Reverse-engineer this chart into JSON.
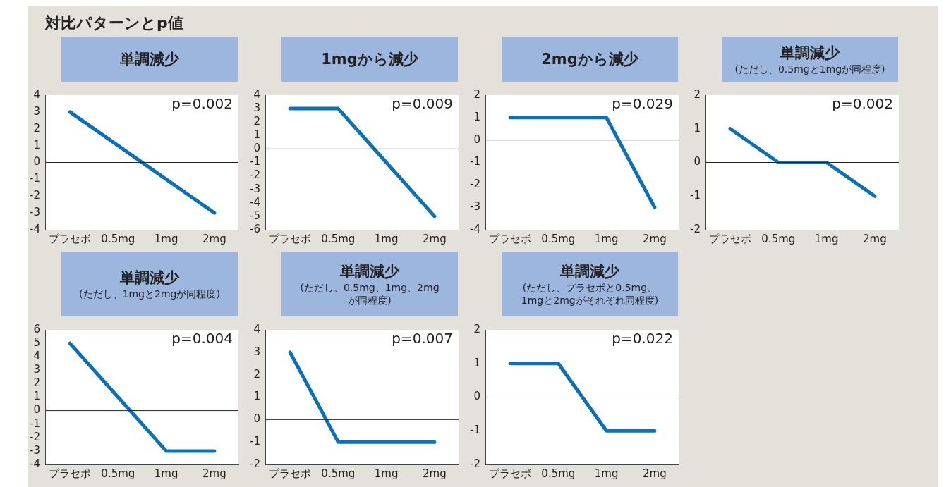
{
  "chart_data": [
    {
      "type": "other",
      "title": "対比パターンとp値"
    },
    {
      "type": "line",
      "title": "単調減少",
      "categories": [
        "プラセボ",
        "0.5mg",
        "1mg",
        "2mg"
      ],
      "values": [
        3,
        1,
        -1,
        -3
      ],
      "color": "#0a70b8",
      "ylim": [
        -4,
        4
      ],
      "yticks": [
        -4,
        -3,
        -2,
        -1,
        0,
        1,
        2,
        3,
        4
      ],
      "annotations": [
        "p=0.002"
      ],
      "ref_lines": [
        {
          "axis": "y",
          "value": 0
        }
      ],
      "grid": false,
      "marker": "none"
    },
    {
      "type": "line",
      "title": "1mgから減少",
      "categories": [
        "プラセボ",
        "0.5mg",
        "1mg",
        "2mg"
      ],
      "values": [
        3,
        3,
        -1,
        -5
      ],
      "color": "#0a70b8",
      "ylim": [
        -6,
        4
      ],
      "yticks": [
        -6,
        -5,
        -4,
        -3,
        -2,
        -1,
        0,
        1,
        2,
        3,
        4
      ],
      "annotations": [
        "p=0.009"
      ],
      "ref_lines": [
        {
          "axis": "y",
          "value": 0
        }
      ],
      "grid": false,
      "marker": "none"
    },
    {
      "type": "line",
      "title": "2mgから減少",
      "categories": [
        "プラセボ",
        "0.5mg",
        "1mg",
        "2mg"
      ],
      "values": [
        1,
        1,
        1,
        -3
      ],
      "color": "#0a70b8",
      "ylim": [
        -4,
        2
      ],
      "yticks": [
        -4,
        -3,
        -2,
        -1,
        0,
        1,
        2
      ],
      "annotations": [
        "p=0.029"
      ],
      "ref_lines": [
        {
          "axis": "y",
          "value": 0
        }
      ],
      "grid": false,
      "marker": "none"
    },
    {
      "type": "line",
      "title": "単調減少",
      "subtitle": "(ただし、0.5mgと1mgが同程度)",
      "categories": [
        "プラセボ",
        "0.5mg",
        "1mg",
        "2mg"
      ],
      "values": [
        1,
        0,
        0,
        -1
      ],
      "color": "#0a70b8",
      "ylim": [
        -2,
        2
      ],
      "yticks": [
        -2,
        -1,
        0,
        1,
        2
      ],
      "annotations": [
        "p=0.002"
      ],
      "ref_lines": [
        {
          "axis": "y",
          "value": 0
        }
      ],
      "grid": false,
      "marker": "none"
    },
    {
      "type": "line",
      "title": "単調減少",
      "subtitle": "(ただし、1mgと2mgが同程度)",
      "categories": [
        "プラセボ",
        "0.5mg",
        "1mg",
        "2mg"
      ],
      "values": [
        5,
        1,
        -3,
        -3
      ],
      "color": "#0a70b8",
      "ylim": [
        -4,
        6
      ],
      "yticks": [
        -4,
        -3,
        -2,
        -1,
        0,
        1,
        2,
        3,
        4,
        5,
        6
      ],
      "annotations": [
        "p=0.004"
      ],
      "ref_lines": [
        {
          "axis": "y",
          "value": 0
        }
      ],
      "grid": false,
      "marker": "none"
    },
    {
      "type": "line",
      "title": "単調減少",
      "subtitle": "(ただし、0.5mg、1mg、2mg\nが同程度)",
      "categories": [
        "プラセボ",
        "0.5mg",
        "1mg",
        "2mg"
      ],
      "values": [
        3,
        -1,
        -1,
        -1
      ],
      "color": "#0a70b8",
      "ylim": [
        -2,
        4
      ],
      "yticks": [
        -2,
        -1,
        0,
        1,
        2,
        3,
        4
      ],
      "annotations": [
        "p=0.007"
      ],
      "ref_lines": [
        {
          "axis": "y",
          "value": 0
        }
      ],
      "grid": false,
      "marker": "none"
    },
    {
      "type": "line",
      "title": "単調減少",
      "subtitle": "(ただし、プラセボと0.5mg、\n1mgと2mgがそれぞれ同程度)",
      "categories": [
        "プラセボ",
        "0.5mg",
        "1mg",
        "2mg"
      ],
      "values": [
        1,
        1,
        -1,
        -1
      ],
      "color": "#0a70b8",
      "ylim": [
        -2,
        2
      ],
      "yticks": [
        -2,
        -1,
        0,
        1,
        2
      ],
      "annotations": [
        "p=0.022"
      ],
      "ref_lines": [
        {
          "axis": "y",
          "value": 0
        }
      ],
      "grid": false,
      "marker": "none"
    }
  ]
}
